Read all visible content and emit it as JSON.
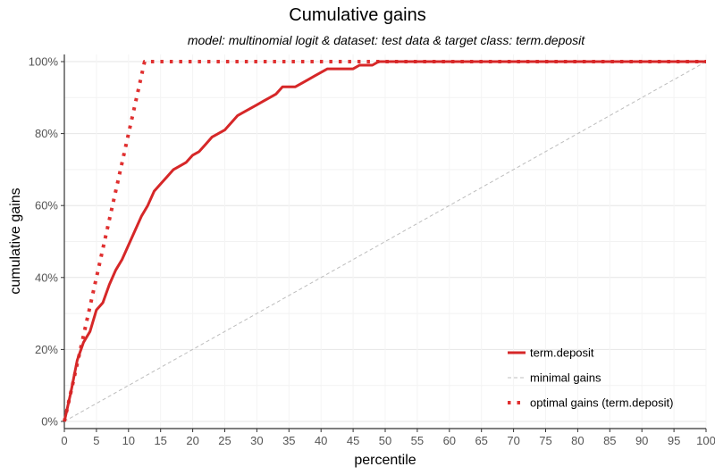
{
  "chart_data": {
    "type": "line",
    "title": "Cumulative gains",
    "subtitle": "model: multinomial logit  &  dataset: test data  &  target class: term.deposit",
    "xlabel": "percentile",
    "ylabel": "cumulative gains",
    "xlim": [
      0,
      100
    ],
    "ylim": [
      0,
      100
    ],
    "x_ticks": [
      0,
      5,
      10,
      15,
      20,
      25,
      30,
      35,
      40,
      45,
      50,
      55,
      60,
      65,
      70,
      75,
      80,
      85,
      90,
      95,
      100
    ],
    "x_tick_labels": [
      "0",
      "5",
      "10",
      "15",
      "20",
      "25",
      "30",
      "35",
      "40",
      "45",
      "50",
      "55",
      "60",
      "65",
      "70",
      "75",
      "80",
      "85",
      "90",
      "95",
      "100"
    ],
    "y_ticks": [
      0,
      20,
      40,
      60,
      80,
      100
    ],
    "y_tick_labels": [
      "0%",
      "20%",
      "40%",
      "60%",
      "80%",
      "100%"
    ],
    "grid": true,
    "legend_position": "bottom-right",
    "series": [
      {
        "name": "term.deposit",
        "style": "solid",
        "color": "#d62728",
        "x": [
          0,
          1,
          2,
          3,
          4,
          5,
          6,
          7,
          8,
          9,
          10,
          11,
          12,
          13,
          14,
          15,
          16,
          17,
          18,
          19,
          20,
          21,
          22,
          23,
          24,
          25,
          26,
          27,
          28,
          29,
          30,
          31,
          32,
          33,
          34,
          35,
          36,
          37,
          38,
          39,
          40,
          41,
          42,
          43,
          44,
          45,
          46,
          47,
          48,
          49,
          50,
          60,
          70,
          80,
          90,
          100
        ],
        "y": [
          0,
          8,
          17,
          22,
          25,
          31,
          33,
          38,
          42,
          45,
          49,
          53,
          57,
          60,
          64,
          66,
          68,
          70,
          71,
          72,
          74,
          75,
          77,
          79,
          80,
          81,
          83,
          85,
          86,
          87,
          88,
          89,
          90,
          91,
          93,
          93,
          93,
          94,
          95,
          96,
          97,
          98,
          98,
          98,
          98,
          98,
          99,
          99,
          99,
          100,
          100,
          100,
          100,
          100,
          100,
          100
        ]
      },
      {
        "name": "minimal gains",
        "style": "dashed",
        "color": "#bdbdbd",
        "x": [
          0,
          100
        ],
        "y": [
          0,
          100
        ]
      },
      {
        "name": "optimal gains (term.deposit)",
        "style": "dotted",
        "color": "#e03030",
        "x": [
          0,
          12.5,
          100
        ],
        "y": [
          0,
          100,
          100
        ]
      }
    ]
  }
}
